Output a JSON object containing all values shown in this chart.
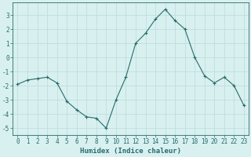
{
  "x": [
    0,
    1,
    2,
    3,
    4,
    5,
    6,
    7,
    8,
    9,
    10,
    11,
    12,
    13,
    14,
    15,
    16,
    17,
    18,
    19,
    20,
    21,
    22,
    23
  ],
  "y": [
    -1.9,
    -1.6,
    -1.5,
    -1.4,
    -1.8,
    -3.1,
    -3.7,
    -4.2,
    -4.3,
    -5.0,
    -3.0,
    -1.4,
    1.0,
    1.7,
    2.7,
    3.4,
    2.6,
    2.0,
    0.0,
    -1.3,
    -1.8,
    -1.4,
    -2.0,
    -3.4
  ],
  "line_color": "#2a6b6b",
  "marker": "+",
  "marker_size": 3,
  "bg_color": "#d8f0f0",
  "grid_color": "#c0dede",
  "axis_color": "#2a6b6b",
  "xlabel": "Humidex (Indice chaleur)",
  "xlabel_fontsize": 6.5,
  "tick_fontsize": 5.5,
  "xlim": [
    -0.5,
    23.5
  ],
  "ylim": [
    -5.5,
    3.9
  ],
  "yticks": [
    -5,
    -4,
    -3,
    -2,
    -1,
    0,
    1,
    2,
    3
  ],
  "xticks": [
    0,
    1,
    2,
    3,
    4,
    5,
    6,
    7,
    8,
    9,
    10,
    11,
    12,
    13,
    14,
    15,
    16,
    17,
    18,
    19,
    20,
    21,
    22,
    23
  ]
}
